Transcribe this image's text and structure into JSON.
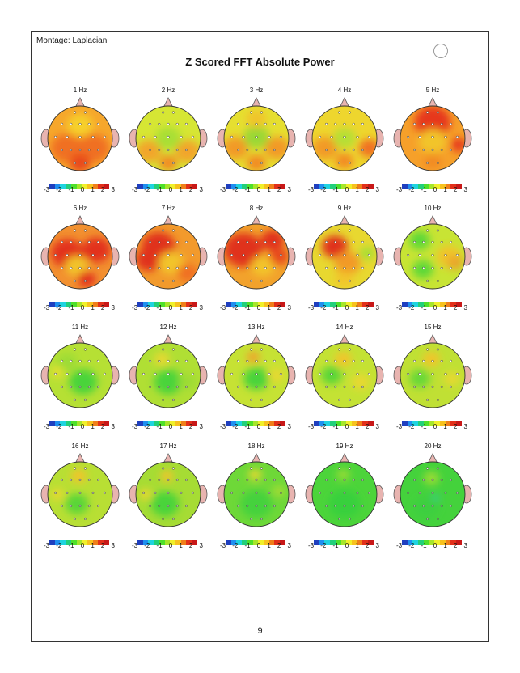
{
  "montage_label": "Montage:  Laplacian",
  "title": "Z Scored FFT Absolute Power",
  "page_number": "9",
  "colorbar_ticks": [
    "-3",
    "-2",
    "-1",
    "0",
    "1",
    "2",
    "3"
  ],
  "colorbar_colors": [
    "#1f3fbf",
    "#1e8ff0",
    "#1fd3e0",
    "#22d07a",
    "#4ee02a",
    "#a6e62a",
    "#f0f02a",
    "#f7c21e",
    "#f07f1a",
    "#e2301a",
    "#c81818"
  ],
  "electrode_icon": "electrode-dot-icon",
  "maps": [
    {
      "label": "1 Hz",
      "fill": "#f6a72c",
      "blobs": [
        [
          "#f07020",
          0.3,
          0.65,
          0.25
        ],
        [
          "#f07020",
          0.7,
          0.65,
          0.25
        ],
        [
          "#f6d02a",
          0.5,
          0.3,
          0.2
        ],
        [
          "#e84a1c",
          0.5,
          0.88,
          0.16
        ]
      ]
    },
    {
      "label": "2 Hz",
      "fill": "#d6e634",
      "blobs": [
        [
          "#f2a52a",
          0.2,
          0.7,
          0.2
        ],
        [
          "#f2a52a",
          0.8,
          0.7,
          0.2
        ],
        [
          "#a8df34",
          0.5,
          0.5,
          0.2
        ],
        [
          "#f28a22",
          0.5,
          0.88,
          0.14
        ]
      ]
    },
    {
      "label": "3 Hz",
      "fill": "#e6df30",
      "blobs": [
        [
          "#f29a28",
          0.18,
          0.65,
          0.2
        ],
        [
          "#f29a28",
          0.82,
          0.65,
          0.2
        ],
        [
          "#9ad834",
          0.5,
          0.48,
          0.2
        ],
        [
          "#f28a22",
          0.5,
          0.88,
          0.15
        ],
        [
          "#f0c42c",
          0.5,
          0.2,
          0.16
        ]
      ]
    },
    {
      "label": "4 Hz",
      "fill": "#eed62e",
      "blobs": [
        [
          "#f29a28",
          0.2,
          0.65,
          0.2
        ],
        [
          "#f07020",
          0.88,
          0.65,
          0.16
        ],
        [
          "#b6df34",
          0.5,
          0.5,
          0.18
        ],
        [
          "#f28a22",
          0.5,
          0.85,
          0.14
        ]
      ]
    },
    {
      "label": "5 Hz",
      "fill": "#f6a02a",
      "blobs": [
        [
          "#e6381c",
          0.5,
          0.25,
          0.28
        ],
        [
          "#f2c42c",
          0.5,
          0.55,
          0.22
        ],
        [
          "#e6381c",
          0.9,
          0.6,
          0.12
        ],
        [
          "#f28a22",
          0.5,
          0.85,
          0.14
        ]
      ]
    },
    {
      "label": "6 Hz",
      "fill": "#f29030",
      "blobs": [
        [
          "#e2321c",
          0.3,
          0.45,
          0.25
        ],
        [
          "#e2321c",
          0.75,
          0.4,
          0.22
        ],
        [
          "#f2c42c",
          0.45,
          0.65,
          0.18
        ],
        [
          "#e2321c",
          0.6,
          0.85,
          0.14
        ]
      ]
    },
    {
      "label": "7 Hz",
      "fill": "#f29a2c",
      "blobs": [
        [
          "#e0301a",
          0.35,
          0.35,
          0.26
        ],
        [
          "#e0301a",
          0.2,
          0.55,
          0.2
        ],
        [
          "#f2c42c",
          0.55,
          0.6,
          0.2
        ],
        [
          "#f07020",
          0.8,
          0.75,
          0.16
        ]
      ]
    },
    {
      "label": "8 Hz",
      "fill": "#f2a22c",
      "blobs": [
        [
          "#e0301a",
          0.3,
          0.4,
          0.3
        ],
        [
          "#e0301a",
          0.75,
          0.25,
          0.18
        ],
        [
          "#f2c42c",
          0.6,
          0.65,
          0.18
        ],
        [
          "#e84a1c",
          0.85,
          0.5,
          0.15
        ]
      ]
    },
    {
      "label": "9 Hz",
      "fill": "#e8d830",
      "blobs": [
        [
          "#e0301a",
          0.35,
          0.35,
          0.2
        ],
        [
          "#f29a28",
          0.55,
          0.6,
          0.2
        ],
        [
          "#a6df34",
          0.85,
          0.45,
          0.12
        ],
        [
          "#f2c42c",
          0.5,
          0.85,
          0.14
        ]
      ]
    },
    {
      "label": "10 Hz",
      "fill": "#c8e434",
      "blobs": [
        [
          "#5dd838",
          0.3,
          0.25,
          0.16
        ],
        [
          "#f0c42c",
          0.75,
          0.5,
          0.2
        ],
        [
          "#5dd838",
          0.35,
          0.7,
          0.16
        ],
        [
          "#eaa22c",
          0.85,
          0.6,
          0.12
        ]
      ]
    },
    {
      "label": "11 Hz",
      "fill": "#b6e034",
      "blobs": [
        [
          "#48d43a",
          0.55,
          0.6,
          0.22
        ],
        [
          "#9cdc34",
          0.3,
          0.3,
          0.16
        ],
        [
          "#e6df30",
          0.15,
          0.45,
          0.1
        ]
      ]
    },
    {
      "label": "12 Hz",
      "fill": "#b0df34",
      "blobs": [
        [
          "#48d43a",
          0.5,
          0.6,
          0.22
        ],
        [
          "#e8d830",
          0.4,
          0.25,
          0.12
        ],
        [
          "#9cdc34",
          0.8,
          0.6,
          0.14
        ]
      ]
    },
    {
      "label": "13 Hz",
      "fill": "#c6e234",
      "blobs": [
        [
          "#48d43a",
          0.5,
          0.55,
          0.2
        ],
        [
          "#f2a02a",
          0.45,
          0.22,
          0.1
        ],
        [
          "#e8d830",
          0.8,
          0.5,
          0.12
        ]
      ]
    },
    {
      "label": "14 Hz",
      "fill": "#c4e234",
      "blobs": [
        [
          "#f07020",
          0.48,
          0.22,
          0.07
        ],
        [
          "#f2c42c",
          0.48,
          0.25,
          0.13
        ],
        [
          "#58d638",
          0.3,
          0.5,
          0.16
        ],
        [
          "#e8d830",
          0.75,
          0.6,
          0.14
        ]
      ]
    },
    {
      "label": "15 Hz",
      "fill": "#c0e034",
      "blobs": [
        [
          "#ee6a22",
          0.48,
          0.22,
          0.07
        ],
        [
          "#f2c42c",
          0.48,
          0.25,
          0.13
        ],
        [
          "#68d838",
          0.3,
          0.55,
          0.16
        ],
        [
          "#e8d830",
          0.8,
          0.55,
          0.12
        ]
      ]
    },
    {
      "label": "16 Hz",
      "fill": "#b8df34",
      "blobs": [
        [
          "#f06a20",
          0.48,
          0.2,
          0.06
        ],
        [
          "#f2c42c",
          0.48,
          0.22,
          0.12
        ],
        [
          "#58d638",
          0.45,
          0.65,
          0.18
        ],
        [
          "#e8d830",
          0.15,
          0.5,
          0.1
        ]
      ]
    },
    {
      "label": "17 Hz",
      "fill": "#a6dc34",
      "blobs": [
        [
          "#f2c42c",
          0.48,
          0.22,
          0.1
        ],
        [
          "#48d43a",
          0.45,
          0.65,
          0.22
        ],
        [
          "#e8d830",
          0.15,
          0.5,
          0.1
        ]
      ]
    },
    {
      "label": "18 Hz",
      "fill": "#6ed838",
      "blobs": [
        [
          "#e8d830",
          0.48,
          0.2,
          0.1
        ],
        [
          "#44d23c",
          0.5,
          0.65,
          0.25
        ],
        [
          "#a6dc34",
          0.85,
          0.45,
          0.1
        ]
      ]
    },
    {
      "label": "19 Hz",
      "fill": "#4cd43a",
      "blobs": [
        [
          "#9cdc34",
          0.48,
          0.2,
          0.1
        ],
        [
          "#38d03e",
          0.5,
          0.65,
          0.25
        ]
      ]
    },
    {
      "label": "20 Hz",
      "fill": "#44d23c",
      "blobs": [
        [
          "#9cdc34",
          0.48,
          0.25,
          0.12
        ],
        [
          "#2ec8b0",
          0.55,
          0.55,
          0.05
        ],
        [
          "#3ccf40",
          0.4,
          0.7,
          0.2
        ]
      ]
    }
  ]
}
